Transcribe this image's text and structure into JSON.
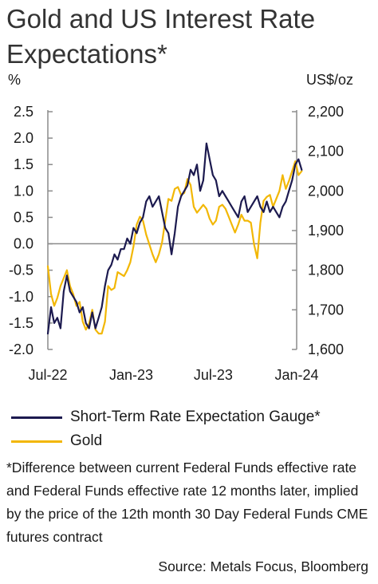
{
  "title": "Gold and US Interest Rate Expectations*",
  "chart_data": {
    "type": "line",
    "left_axis": {
      "unit_label": "%",
      "ticks": [
        2.5,
        2.0,
        1.5,
        1.0,
        0.5,
        0.0,
        -0.5,
        -1.0,
        -1.5,
        -2.0
      ],
      "tick_labels": [
        "2.5",
        "2.0",
        "1.5",
        "1.0",
        "0.5",
        "0.0",
        "-0.5",
        "-1.0",
        "-1.5",
        "-2.0"
      ],
      "range": [
        -2.0,
        2.5
      ]
    },
    "right_axis": {
      "unit_label": "US$/oz",
      "ticks": [
        2200,
        2100,
        2000,
        1900,
        1800,
        1700,
        1600
      ],
      "tick_labels": [
        "2,200",
        "2,100",
        "2,000",
        "1,900",
        "1,800",
        "1,700",
        "1,600"
      ],
      "range": [
        1600,
        2200
      ]
    },
    "x_axis": {
      "tick_labels": [
        "Jul-22",
        "Jan-23",
        "Jul-23",
        "Jan-24"
      ],
      "range": [
        "2022-07",
        "2024-01"
      ]
    },
    "zero_line": true,
    "grid": false,
    "legend_position": "bottom",
    "series": [
      {
        "name": "Short-Term Rate Expectation Gauge*",
        "axis": "left",
        "color": "#1c1a4f",
        "x": [
          "2022-07-01",
          "2022-07-08",
          "2022-07-15",
          "2022-07-22",
          "2022-07-29",
          "2022-08-05",
          "2022-08-12",
          "2022-08-19",
          "2022-08-26",
          "2022-09-02",
          "2022-09-09",
          "2022-09-16",
          "2022-09-23",
          "2022-09-30",
          "2022-10-07",
          "2022-10-14",
          "2022-10-21",
          "2022-10-28",
          "2022-11-04",
          "2022-11-11",
          "2022-11-18",
          "2022-11-25",
          "2022-12-02",
          "2022-12-09",
          "2022-12-16",
          "2022-12-23",
          "2022-12-30",
          "2023-01-06",
          "2023-01-13",
          "2023-01-20",
          "2023-01-27",
          "2023-02-03",
          "2023-02-10",
          "2023-02-17",
          "2023-02-24",
          "2023-03-03",
          "2023-03-10",
          "2023-03-17",
          "2023-03-24",
          "2023-03-31",
          "2023-04-07",
          "2023-04-14",
          "2023-04-21",
          "2023-04-28",
          "2023-05-05",
          "2023-05-12",
          "2023-05-19",
          "2023-05-26",
          "2023-06-02",
          "2023-06-09",
          "2023-06-16",
          "2023-06-23",
          "2023-06-30",
          "2023-07-07",
          "2023-07-14",
          "2023-07-21",
          "2023-07-28",
          "2023-08-04",
          "2023-08-11",
          "2023-08-18",
          "2023-08-25",
          "2023-09-01",
          "2023-09-08",
          "2023-09-15",
          "2023-09-22",
          "2023-09-29",
          "2023-10-06",
          "2023-10-13",
          "2023-10-20",
          "2023-10-27",
          "2023-11-03",
          "2023-11-10",
          "2023-11-17",
          "2023-11-24",
          "2023-12-01",
          "2023-12-08",
          "2023-12-15",
          "2023-12-22",
          "2023-12-29",
          "2024-01-05",
          "2024-01-12"
        ],
        "values": [
          -1.7,
          -1.2,
          -1.5,
          -1.4,
          -1.6,
          -0.9,
          -0.6,
          -0.9,
          -1.0,
          -1.1,
          -1.3,
          -1.2,
          -1.5,
          -1.6,
          -1.3,
          -1.6,
          -1.4,
          -1.2,
          -0.8,
          -0.5,
          -0.4,
          -0.2,
          -0.3,
          -0.1,
          -0.1,
          0.1,
          0.0,
          0.3,
          0.2,
          0.4,
          0.5,
          0.8,
          0.9,
          0.7,
          0.8,
          0.9,
          0.6,
          0.3,
          0.2,
          -0.2,
          0.2,
          0.7,
          0.9,
          1.0,
          1.1,
          1.4,
          1.3,
          1.5,
          1.0,
          1.2,
          1.9,
          1.6,
          1.3,
          1.2,
          0.9,
          1.0,
          0.9,
          0.8,
          0.7,
          0.6,
          0.5,
          0.8,
          0.9,
          0.6,
          0.7,
          0.8,
          0.9,
          0.7,
          0.6,
          0.8,
          0.6,
          0.7,
          0.6,
          0.5,
          0.7,
          0.8,
          1.0,
          1.2,
          1.5,
          1.6,
          1.4
        ]
      },
      {
        "name": "Gold",
        "axis": "right",
        "color": "#f2b705",
        "x": [
          "2022-07-01",
          "2022-07-08",
          "2022-07-15",
          "2022-07-22",
          "2022-07-29",
          "2022-08-05",
          "2022-08-12",
          "2022-08-19",
          "2022-08-26",
          "2022-09-02",
          "2022-09-09",
          "2022-09-16",
          "2022-09-23",
          "2022-09-30",
          "2022-10-07",
          "2022-10-14",
          "2022-10-21",
          "2022-10-28",
          "2022-11-04",
          "2022-11-11",
          "2022-11-18",
          "2022-11-25",
          "2022-12-02",
          "2022-12-09",
          "2022-12-16",
          "2022-12-23",
          "2022-12-30",
          "2023-01-06",
          "2023-01-13",
          "2023-01-20",
          "2023-01-27",
          "2023-02-03",
          "2023-02-10",
          "2023-02-17",
          "2023-02-24",
          "2023-03-03",
          "2023-03-10",
          "2023-03-17",
          "2023-03-24",
          "2023-03-31",
          "2023-04-07",
          "2023-04-14",
          "2023-04-21",
          "2023-04-28",
          "2023-05-05",
          "2023-05-12",
          "2023-05-19",
          "2023-05-26",
          "2023-06-02",
          "2023-06-09",
          "2023-06-16",
          "2023-06-23",
          "2023-06-30",
          "2023-07-07",
          "2023-07-14",
          "2023-07-21",
          "2023-07-28",
          "2023-08-04",
          "2023-08-11",
          "2023-08-18",
          "2023-08-25",
          "2023-09-01",
          "2023-09-08",
          "2023-09-15",
          "2023-09-22",
          "2023-09-29",
          "2023-10-06",
          "2023-10-13",
          "2023-10-20",
          "2023-10-27",
          "2023-11-03",
          "2023-11-10",
          "2023-11-17",
          "2023-11-24",
          "2023-12-01",
          "2023-12-08",
          "2023-12-15",
          "2023-12-22",
          "2023-12-29",
          "2024-01-05",
          "2024-01-12"
        ],
        "values": [
          1810,
          1740,
          1710,
          1730,
          1760,
          1780,
          1800,
          1760,
          1740,
          1710,
          1720,
          1670,
          1650,
          1665,
          1700,
          1650,
          1640,
          1640,
          1670,
          1760,
          1750,
          1755,
          1795,
          1790,
          1785,
          1800,
          1820,
          1860,
          1915,
          1935,
          1925,
          1890,
          1865,
          1840,
          1820,
          1840,
          1870,
          1925,
          1980,
          1975,
          2005,
          2010,
          1990,
          1995,
          2030,
          2015,
          1960,
          1945,
          1955,
          1965,
          1955,
          1930,
          1915,
          1925,
          1960,
          1965,
          1955,
          1935,
          1915,
          1895,
          1915,
          1940,
          1925,
          1925,
          1920,
          1865,
          1830,
          1920,
          1975,
          1985,
          1990,
          1960,
          1980,
          2000,
          2040,
          2005,
          2025,
          2050,
          2075,
          2040,
          2050
        ]
      }
    ]
  },
  "legend": {
    "items": [
      {
        "label": "Short-Term Rate Expectation Gauge*",
        "color": "#1c1a4f"
      },
      {
        "label": "Gold",
        "color": "#f2b705"
      }
    ]
  },
  "footnote": "*Difference between current Federal Funds effective rate and Federal Funds effective rate 12 months later, implied by the price of the 12th month 30 Day Federal Funds CME futures contract",
  "source": "Source: Metals Focus, Bloomberg"
}
